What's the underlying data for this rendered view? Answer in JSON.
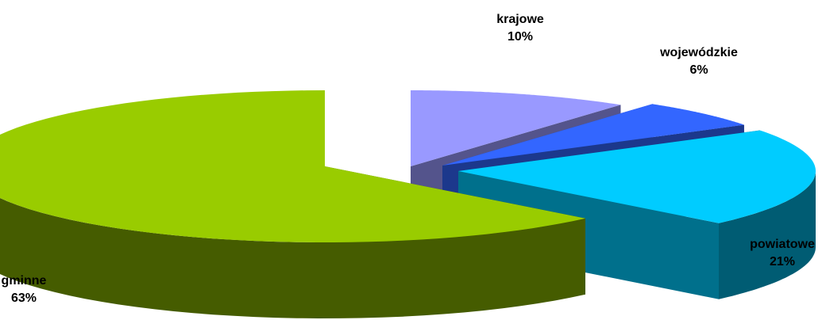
{
  "chart_data": {
    "type": "pie",
    "style": "3d-exploded",
    "legend": "none",
    "slices": [
      {
        "label": "krajowe",
        "value": 10,
        "value_label": "10%",
        "color": "#9999ff"
      },
      {
        "label": "wojewódzkie",
        "value": 6,
        "value_label": "6%",
        "color": "#3366ff"
      },
      {
        "label": "powiatowe",
        "value": 21,
        "value_label": "21%",
        "color": "#00ccff"
      },
      {
        "label": "gminne",
        "value": 63,
        "value_label": "63%",
        "color": "#99cc00"
      }
    ]
  }
}
